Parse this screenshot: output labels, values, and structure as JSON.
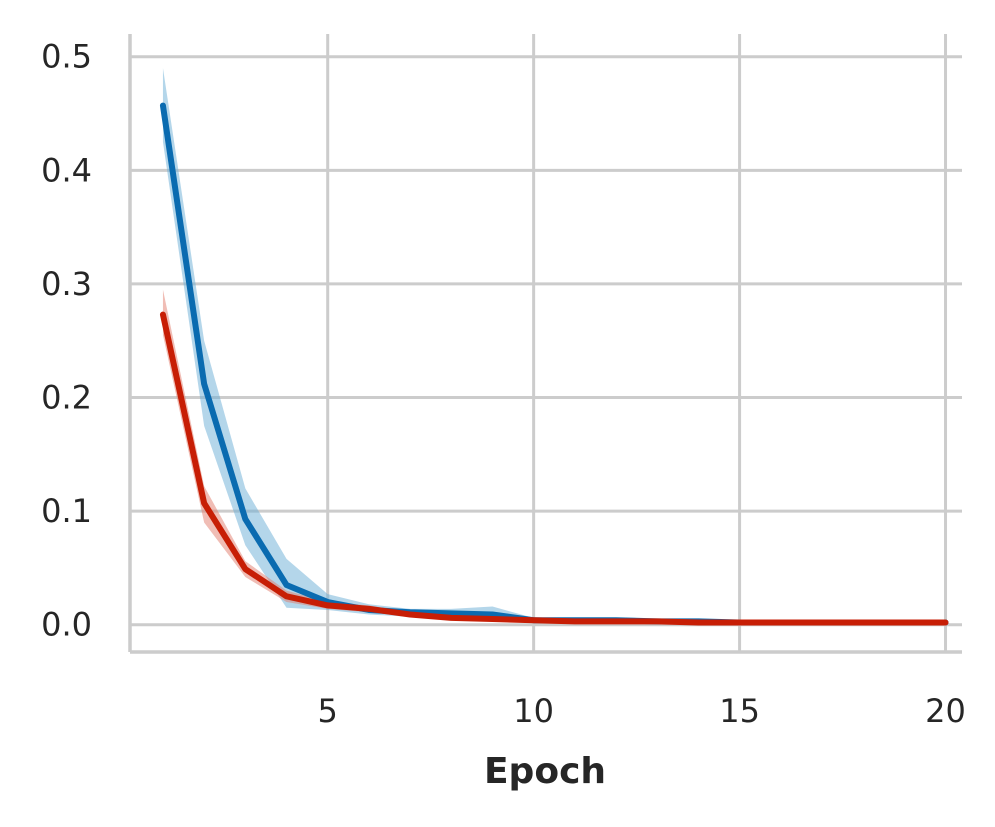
{
  "chart_data": {
    "type": "line",
    "title": "",
    "xlabel": "Epoch",
    "ylabel": "",
    "xlim": [
      0.2,
      20.4
    ],
    "ylim": [
      -0.024,
      0.52
    ],
    "x_ticks": [
      5,
      10,
      15,
      20
    ],
    "x_tick_labels": [
      "5",
      "10",
      "15",
      "20"
    ],
    "y_ticks": [
      0.0,
      0.1,
      0.2,
      0.3,
      0.4,
      0.5
    ],
    "y_tick_labels": [
      "0.0",
      "0.1",
      "0.2",
      "0.3",
      "0.4",
      "0.5"
    ],
    "grid": true,
    "legend": "none",
    "x": [
      1,
      2,
      3,
      4,
      5,
      6,
      7,
      8,
      9,
      10,
      11,
      12,
      13,
      14,
      15,
      16,
      17,
      18,
      19,
      20
    ],
    "series": [
      {
        "color": "#0a6bb0",
        "band_color": "#6aaed6",
        "values": [
          0.457,
          0.212,
          0.093,
          0.035,
          0.02,
          0.013,
          0.011,
          0.01,
          0.009,
          0.004,
          0.004,
          0.004,
          0.003,
          0.003,
          0.002,
          0.002,
          0.002,
          0.002,
          0.002,
          0.002
        ],
        "lower": [
          0.425,
          0.175,
          0.07,
          0.015,
          0.013,
          0.009,
          0.007,
          0.006,
          0.004,
          0.003,
          0.003,
          0.002,
          0.002,
          0.002,
          0.001,
          0.001,
          0.001,
          0.001,
          0.001,
          0.001
        ],
        "upper": [
          0.49,
          0.25,
          0.12,
          0.058,
          0.027,
          0.018,
          0.014,
          0.014,
          0.016,
          0.006,
          0.005,
          0.005,
          0.004,
          0.004,
          0.003,
          0.003,
          0.003,
          0.003,
          0.003,
          0.003
        ]
      },
      {
        "color": "#c71e05",
        "band_color": "#e27c6c",
        "values": [
          0.273,
          0.107,
          0.049,
          0.025,
          0.017,
          0.014,
          0.009,
          0.006,
          0.005,
          0.004,
          0.003,
          0.003,
          0.003,
          0.002,
          0.002,
          0.002,
          0.002,
          0.002,
          0.002,
          0.002
        ],
        "lower": [
          0.255,
          0.09,
          0.042,
          0.02,
          0.014,
          0.011,
          0.007,
          0.005,
          0.004,
          0.003,
          0.002,
          0.002,
          0.002,
          0.001,
          0.001,
          0.001,
          0.001,
          0.001,
          0.001,
          0.001
        ],
        "upper": [
          0.295,
          0.122,
          0.056,
          0.03,
          0.02,
          0.017,
          0.011,
          0.008,
          0.006,
          0.005,
          0.004,
          0.004,
          0.004,
          0.003,
          0.003,
          0.003,
          0.003,
          0.003,
          0.003,
          0.003
        ]
      }
    ]
  }
}
